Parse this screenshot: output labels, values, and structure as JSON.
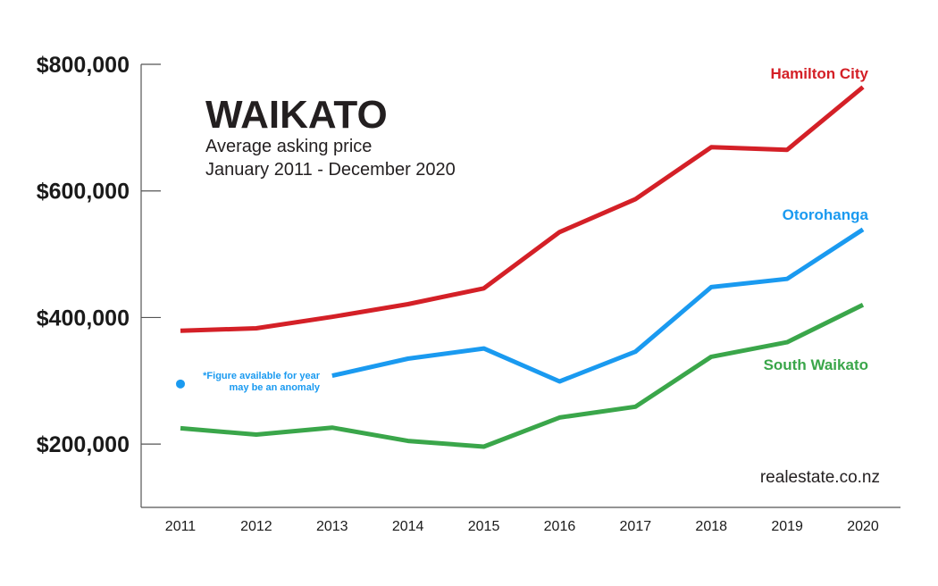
{
  "chart_data": {
    "type": "line",
    "title": "WAIKATO",
    "subtitle_line1": "Average asking price",
    "subtitle_line2": "January 2011 - December 2020",
    "source": "realestate.co.nz",
    "x": [
      "2011",
      "2012",
      "2013",
      "2014",
      "2015",
      "2016",
      "2017",
      "2018",
      "2019",
      "2020"
    ],
    "ylim": [
      100000,
      800000
    ],
    "yticks": [
      {
        "value": 200000,
        "label": "$200,000"
      },
      {
        "value": 400000,
        "label": "$400,000"
      },
      {
        "value": 600000,
        "label": "$600,000"
      },
      {
        "value": 800000,
        "label": "$800,000"
      }
    ],
    "grid": false,
    "series": [
      {
        "name": "Hamilton City",
        "color": "#d42027",
        "values": [
          379000,
          383000,
          401000,
          421000,
          446000,
          535000,
          587000,
          669000,
          665000,
          764000
        ]
      },
      {
        "name": "Otorohanga",
        "color": "#1a9af0",
        "values": [
          295000,
          null,
          308000,
          335000,
          351000,
          299000,
          346000,
          448000,
          461000,
          539000
        ]
      },
      {
        "name": "South Waikato",
        "color": "#3aa64a",
        "values": [
          225000,
          215000,
          226000,
          205000,
          196000,
          242000,
          259000,
          338000,
          361000,
          420000
        ]
      }
    ],
    "annotation_line1": "*Figure available for year",
    "annotation_line2": "may be an anomaly"
  }
}
